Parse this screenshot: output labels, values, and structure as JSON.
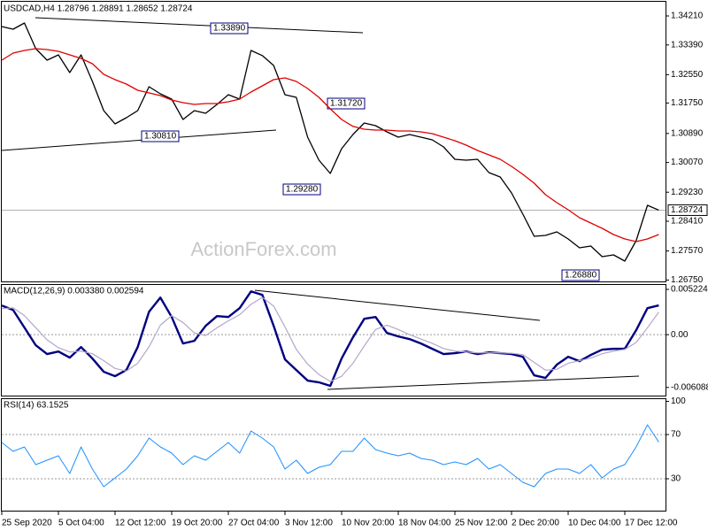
{
  "chart_data": [
    {
      "type": "line",
      "title": "USDCAD,H4  1.28796 1.28891 1.28652 1.28724",
      "watermark": "ActionForex.com",
      "series": [
        {
          "color": "#000000",
          "values": [
            1.3391,
            1.33835,
            1.3401,
            1.33285,
            1.3296,
            1.3311,
            1.3261,
            1.3311,
            1.3236,
            1.31535,
            1.3116,
            1.31335,
            1.31535,
            1.3221,
            1.3201,
            1.3186,
            1.31285,
            1.31535,
            1.3146,
            1.3171,
            1.31985,
            1.3186,
            1.33235,
            1.3309,
            1.3281,
            1.31985,
            1.3191,
            1.30785,
            1.30135,
            1.2976,
            1.3046,
            1.3086,
            1.31185,
            1.3111,
            1.30935,
            1.30785,
            1.3086,
            1.30785,
            1.3071,
            1.3051,
            1.3016,
            1.30135,
            1.3016,
            1.29785,
            1.2966,
            1.2921,
            1.2861,
            1.27985,
            1.2801,
            1.2811,
            1.2791,
            1.2766,
            1.2771,
            1.2741,
            1.2746,
            1.27285,
            1.2786,
            1.2886,
            1.28724
          ]
        },
        {
          "color": "#e00000",
          "values": [
            1.3296,
            1.3316,
            1.33235,
            1.33285,
            1.3326,
            1.3321,
            1.3311,
            1.3301,
            1.3286,
            1.3256,
            1.3241,
            1.32285,
            1.3211,
            1.32035,
            1.3196,
            1.31835,
            1.3176,
            1.3171,
            1.31735,
            1.31735,
            1.31785,
            1.3186,
            1.3206,
            1.32235,
            1.3241,
            1.3246,
            1.3236,
            1.3216,
            1.3191,
            1.31585,
            1.31285,
            1.3109,
            1.3101,
            1.30985,
            1.30985,
            1.3096,
            1.3096,
            1.30935,
            1.30885,
            1.30785,
            1.30685,
            1.3056,
            1.3041,
            1.30285,
            1.3016,
            1.2996,
            1.29735,
            1.29485,
            1.2916,
            1.28935,
            1.28735,
            1.2851,
            1.2836,
            1.2821,
            1.28035,
            1.2791,
            1.27835,
            1.2791,
            1.28035
          ]
        }
      ],
      "current_price": 1.28724,
      "annotations": [
        "1.33890",
        "1.30810",
        "1.29280",
        "1.31720",
        "1.26880"
      ],
      "ylim": [
        1.26735,
        1.3461
      ],
      "yticks": [
        {
          "value": 1.3421,
          "label": "1.34210"
        },
        {
          "value": 1.3339,
          "label": "1.33390"
        },
        {
          "value": 1.3255,
          "label": "1.32550"
        },
        {
          "value": 1.3175,
          "label": "1.31750"
        },
        {
          "value": 1.3089,
          "label": "1.30890"
        },
        {
          "value": 1.3007,
          "label": "1.30070"
        },
        {
          "value": 1.2923,
          "label": "1.29230"
        },
        {
          "value": 1.2841,
          "label": "1.28410"
        },
        {
          "value": 1.2757,
          "label": "1.27570"
        },
        {
          "value": 1.2675,
          "label": "1.26750"
        }
      ]
    },
    {
      "type": "line",
      "title": "MACD(12,26,9) 0.003380 0.002594",
      "series": [
        {
          "color": "#000080",
          "values": [
            0.00336,
            0.00285,
            0.00082,
            -0.00122,
            -0.00224,
            -0.00194,
            -0.00265,
            -0.00143,
            -0.00275,
            -0.00428,
            -0.00479,
            -0.00408,
            -0.00143,
            0.00265,
            0.00428,
            0.00204,
            -0.00102,
            -0.00071,
            0.00102,
            0.00214,
            0.00204,
            0.00306,
            0.00499,
            0.00459,
            0.00102,
            -0.00285,
            -0.00408,
            -0.0053,
            -0.0055,
            -0.00591,
            -0.00275,
            -0.00031,
            0.00183,
            0.00204,
            0.0002,
            -0.0002,
            -0.00051,
            -0.00102,
            -0.00163,
            -0.00224,
            -0.00214,
            -0.00194,
            -0.00224,
            -0.00204,
            -0.00214,
            -0.00224,
            -0.00255,
            -0.00469,
            -0.00499,
            -0.00346,
            -0.00255,
            -0.00306,
            -0.00234,
            -0.00173,
            -0.00163,
            -0.00163,
            0.00051,
            0.00306,
            0.00338
          ]
        },
        {
          "color": "#b4a8c8",
          "values": [
            0.003,
            0.0031,
            0.0022,
            0.0008,
            -0.0006,
            -0.0015,
            -0.002,
            -0.0019,
            -0.0022,
            -0.003,
            -0.0039,
            -0.0042,
            -0.0033,
            -0.0014,
            0.0011,
            0.0022,
            0.0014,
            0.0002,
            -0.0001,
            0.0008,
            0.0016,
            0.0023,
            0.0035,
            0.0043,
            0.0033,
            0.0009,
            -0.0017,
            -0.0034,
            -0.0046,
            -0.0054,
            -0.0048,
            -0.0033,
            -0.0013,
            0.0006,
            0.0011,
            0.0006,
            0.0,
            -0.0005,
            -0.001,
            -0.0016,
            -0.0019,
            -0.002,
            -0.0021,
            -0.0021,
            -0.0021,
            -0.00215,
            -0.0023,
            -0.0032,
            -0.0041,
            -0.004,
            -0.0033,
            -0.003,
            -0.0027,
            -0.0022,
            -0.0019,
            -0.0017,
            -0.0009,
            0.0008,
            0.002594
          ]
        }
      ],
      "levels": [
        0
      ],
      "ylim": [
        -0.00703,
        0.005734
      ],
      "yticks": [
        0.005224,
        {
          "value": 0,
          "label": "0.00"
        },
        -0.006088
      ]
    },
    {
      "type": "line",
      "title": "RSI(14) 63.1525",
      "categories": [
        "25 Sep 2020",
        null,
        null,
        null,
        null,
        "5 Oct 04:00",
        null,
        null,
        null,
        null,
        "12 Oct 12:00",
        null,
        null,
        null,
        null,
        "19 Oct 20:00",
        null,
        null,
        null,
        null,
        "27 Oct 04:00",
        null,
        null,
        null,
        null,
        "3 Nov 12:00",
        null,
        null,
        null,
        null,
        "10 Nov 20:00",
        null,
        null,
        null,
        null,
        "18 Nov 04:00",
        null,
        null,
        null,
        null,
        "25 Nov 12:00",
        null,
        null,
        null,
        null,
        "2 Dec 20:00",
        null,
        null,
        null,
        null,
        "10 Dec 04:00",
        null,
        null,
        null,
        null,
        "17 Dec 12:00",
        null,
        null,
        null
      ],
      "series": [
        {
          "color": "#1e90ff",
          "values": [
            62.8,
            54.8,
            58.8,
            42.8,
            46.8,
            50.8,
            34.8,
            58.8,
            38.8,
            22.8,
            30.8,
            38.8,
            50.8,
            66.8,
            58.8,
            53.2,
            42.8,
            50.8,
            46.8,
            54.8,
            62.8,
            53.2,
            73.2,
            66.8,
            58.8,
            38.8,
            46.8,
            34.8,
            40.4,
            42.8,
            54.8,
            54.8,
            66.8,
            56.4,
            53.2,
            50.8,
            53.2,
            48.4,
            46.8,
            42.8,
            45.2,
            42.8,
            48.4,
            38.8,
            42.8,
            34.8,
            26.8,
            22.8,
            34.8,
            38.8,
            38.8,
            34.8,
            42.8,
            30.8,
            38.8,
            42.8,
            58.8,
            78.8,
            63.1525
          ]
        }
      ],
      "levels": [
        70,
        30
      ],
      "ylim": [
        1.2,
        102
      ],
      "yticks": [
        100,
        70,
        30
      ]
    }
  ]
}
